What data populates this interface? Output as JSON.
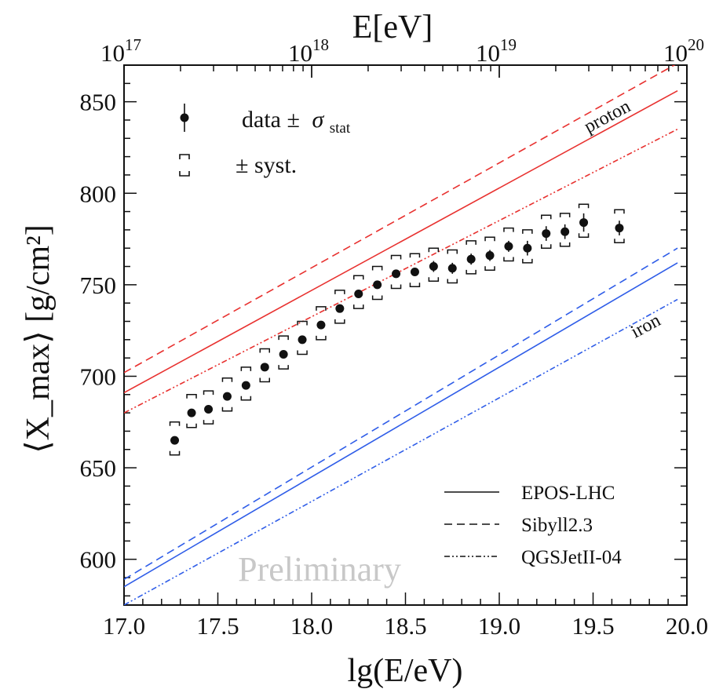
{
  "chart_data": {
    "type": "scatter",
    "xlabel": "lg(E/eV)",
    "ylabel": "⟨X_max⟩ [g/cm²]",
    "top_axis_label": "E[eV]",
    "xlim": [
      17.0,
      20.0
    ],
    "ylim": [
      575,
      870
    ],
    "x_ticks": [
      "17.0",
      "17.5",
      "18.0",
      "18.5",
      "19.0",
      "19.5",
      "20.0"
    ],
    "y_ticks": [
      "600",
      "650",
      "700",
      "750",
      "800",
      "850"
    ],
    "top_ticks": [
      "10",
      "10",
      "10",
      "10"
    ],
    "top_tick_exponents": [
      "17",
      "18",
      "19",
      "20"
    ],
    "top_tick_values": [
      17,
      18,
      19,
      20
    ],
    "grid": false,
    "data_series": {
      "name": "data ± σ_stat",
      "x": [
        17.27,
        17.36,
        17.45,
        17.55,
        17.65,
        17.75,
        17.85,
        17.95,
        18.05,
        18.15,
        18.25,
        18.35,
        18.45,
        18.55,
        18.65,
        18.75,
        18.85,
        18.95,
        19.05,
        19.15,
        19.25,
        19.35,
        19.45,
        19.64
      ],
      "y": [
        665,
        680,
        682,
        689,
        695,
        705,
        712,
        720,
        728,
        737,
        745,
        750,
        756,
        757,
        760,
        759,
        764,
        766,
        771,
        770,
        778,
        779,
        784,
        781
      ],
      "stat_err": [
        2,
        2,
        2,
        2,
        2,
        2,
        2,
        2,
        2,
        2,
        2,
        2,
        2,
        2,
        3,
        3,
        3,
        3,
        3,
        4,
        4,
        4,
        5,
        4
      ],
      "syst_low": [
        8,
        8,
        8,
        8,
        8,
        8,
        8,
        8,
        8,
        8,
        8,
        8,
        8,
        8,
        8,
        8,
        8,
        8,
        8,
        8,
        8,
        8,
        8,
        8
      ],
      "syst_high": [
        10,
        10,
        10,
        10,
        10,
        10,
        10,
        10,
        10,
        10,
        10,
        10,
        10,
        10,
        10,
        10,
        10,
        10,
        10,
        10,
        10,
        10,
        10,
        10
      ]
    },
    "models": [
      {
        "model": "EPOS-LHC",
        "style": "solid",
        "primary": "proton",
        "color": "#e8312f",
        "x": [
          17.0,
          19.95
        ],
        "y": [
          691,
          856
        ]
      },
      {
        "model": "Sibyll2.3",
        "style": "dashed",
        "primary": "proton",
        "color": "#e8312f",
        "x": [
          17.0,
          19.95
        ],
        "y": [
          702,
          871
        ]
      },
      {
        "model": "QGSJetII-04",
        "style": "dashdotdot",
        "primary": "proton",
        "color": "#e8312f",
        "x": [
          17.0,
          19.95
        ],
        "y": [
          680,
          835
        ]
      },
      {
        "model": "EPOS-LHC",
        "style": "solid",
        "primary": "iron",
        "color": "#2f5de8",
        "x": [
          17.0,
          19.95
        ],
        "y": [
          585,
          762
        ]
      },
      {
        "model": "Sibyll2.3",
        "style": "dashed",
        "primary": "iron",
        "color": "#2f5de8",
        "x": [
          17.0,
          19.95
        ],
        "y": [
          589,
          770
        ]
      },
      {
        "model": "QGSJetII-04",
        "style": "dashdotdot",
        "primary": "iron",
        "color": "#2f5de8",
        "x": [
          17.0,
          19.95
        ],
        "y": [
          575,
          742
        ]
      }
    ],
    "legend_points": {
      "data_label": "data ±",
      "data_symbol": "σ",
      "data_subscript": "stat",
      "syst_label": "± syst.",
      "placement": "top-left"
    },
    "legend_models": {
      "placement": "bottom-right",
      "entries": [
        {
          "label": "EPOS-LHC",
          "style": "solid"
        },
        {
          "label": "Sibyll2.3",
          "style": "dashed"
        },
        {
          "label": "QGSJetII-04",
          "style": "dashdotdot"
        }
      ]
    },
    "annotations": {
      "proton": "proton",
      "iron": "iron",
      "watermark": "Preliminary"
    }
  }
}
